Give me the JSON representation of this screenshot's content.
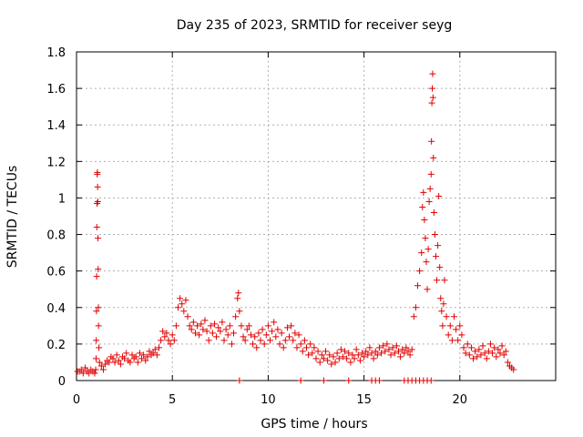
{
  "chart_data": {
    "type": "scatter",
    "title": "Day 235 of 2023, SRMTID for receiver seyg",
    "xlabel": "GPS time / hours",
    "ylabel": "SRMTID / TECUs",
    "xlim": [
      0,
      25
    ],
    "ylim": [
      0,
      1.8
    ],
    "grid": true,
    "marker": "+",
    "colors": {
      "marker": "#e00000",
      "grid": "#b0b0b0",
      "axis": "#000000"
    },
    "xticks": [
      "0",
      "5",
      "10",
      "15",
      "20"
    ],
    "xtick_values": [
      0,
      5,
      10,
      15,
      20
    ],
    "yticks": [
      "0",
      "0.2",
      "0.4",
      "0.6",
      "0.8",
      "1",
      "1.2",
      "1.4",
      "1.6",
      "1.8"
    ],
    "ytick_values": [
      0,
      0.2,
      0.4,
      0.6,
      0.8,
      1.0,
      1.2,
      1.4,
      1.6,
      1.8
    ],
    "series": [
      {
        "name": "SRMTID",
        "points": [
          [
            0.05,
            0.05
          ],
          [
            0.15,
            0.05
          ],
          [
            0.25,
            0.06
          ],
          [
            0.35,
            0.04
          ],
          [
            0.45,
            0.07
          ],
          [
            0.55,
            0.05
          ],
          [
            0.65,
            0.04
          ],
          [
            0.75,
            0.06
          ],
          [
            0.85,
            0.05
          ],
          [
            0.95,
            0.04
          ],
          [
            1.0,
            0.06
          ],
          [
            1.02,
            0.12
          ],
          [
            1.03,
            0.22
          ],
          [
            1.04,
            0.38
          ],
          [
            1.05,
            0.57
          ],
          [
            1.06,
            0.84
          ],
          [
            1.07,
            0.97
          ],
          [
            1.08,
            1.13
          ],
          [
            1.09,
            1.14
          ],
          [
            1.1,
            1.06
          ],
          [
            1.11,
            0.98
          ],
          [
            1.12,
            0.78
          ],
          [
            1.13,
            0.61
          ],
          [
            1.14,
            0.4
          ],
          [
            1.15,
            0.3
          ],
          [
            1.17,
            0.18
          ],
          [
            1.2,
            0.1
          ],
          [
            1.3,
            0.08
          ],
          [
            1.4,
            0.06
          ],
          [
            1.5,
            0.09
          ],
          [
            1.6,
            0.11
          ],
          [
            1.7,
            0.1
          ],
          [
            1.8,
            0.13
          ],
          [
            1.9,
            0.12
          ],
          [
            2.0,
            0.1
          ],
          [
            2.1,
            0.14
          ],
          [
            2.2,
            0.11
          ],
          [
            2.3,
            0.09
          ],
          [
            2.4,
            0.13
          ],
          [
            2.5,
            0.12
          ],
          [
            2.6,
            0.15
          ],
          [
            2.7,
            0.11
          ],
          [
            2.8,
            0.1
          ],
          [
            2.9,
            0.14
          ],
          [
            3.0,
            0.12
          ],
          [
            3.1,
            0.13
          ],
          [
            3.2,
            0.1
          ],
          [
            3.3,
            0.15
          ],
          [
            3.4,
            0.12
          ],
          [
            3.5,
            0.14
          ],
          [
            3.6,
            0.11
          ],
          [
            3.7,
            0.13
          ],
          [
            3.8,
            0.16
          ],
          [
            3.9,
            0.14
          ],
          [
            4.0,
            0.15
          ],
          [
            4.1,
            0.17
          ],
          [
            4.2,
            0.14
          ],
          [
            4.3,
            0.18
          ],
          [
            4.4,
            0.22
          ],
          [
            4.5,
            0.27
          ],
          [
            4.6,
            0.24
          ],
          [
            4.7,
            0.26
          ],
          [
            4.8,
            0.22
          ],
          [
            4.9,
            0.2
          ],
          [
            5.0,
            0.25
          ],
          [
            5.1,
            0.22
          ],
          [
            5.2,
            0.3
          ],
          [
            5.3,
            0.4
          ],
          [
            5.4,
            0.45
          ],
          [
            5.5,
            0.42
          ],
          [
            5.6,
            0.38
          ],
          [
            5.7,
            0.44
          ],
          [
            5.8,
            0.35
          ],
          [
            5.9,
            0.3
          ],
          [
            6.0,
            0.28
          ],
          [
            6.1,
            0.32
          ],
          [
            6.2,
            0.26
          ],
          [
            6.3,
            0.3
          ],
          [
            6.4,
            0.25
          ],
          [
            6.5,
            0.31
          ],
          [
            6.6,
            0.28
          ],
          [
            6.7,
            0.33
          ],
          [
            6.8,
            0.27
          ],
          [
            6.9,
            0.22
          ],
          [
            7.0,
            0.3
          ],
          [
            7.1,
            0.26
          ],
          [
            7.2,
            0.31
          ],
          [
            7.3,
            0.24
          ],
          [
            7.4,
            0.29
          ],
          [
            7.5,
            0.27
          ],
          [
            7.6,
            0.32
          ],
          [
            7.7,
            0.22
          ],
          [
            7.8,
            0.28
          ],
          [
            7.9,
            0.25
          ],
          [
            8.0,
            0.3
          ],
          [
            8.1,
            0.2
          ],
          [
            8.2,
            0.26
          ],
          [
            8.3,
            0.35
          ],
          [
            8.4,
            0.45
          ],
          [
            8.45,
            0.48
          ],
          [
            8.5,
            0.38
          ],
          [
            8.6,
            0.3
          ],
          [
            8.7,
            0.24
          ],
          [
            8.8,
            0.22
          ],
          [
            8.9,
            0.28
          ],
          [
            9.0,
            0.3
          ],
          [
            9.1,
            0.25
          ],
          [
            9.2,
            0.2
          ],
          [
            9.3,
            0.24
          ],
          [
            9.4,
            0.18
          ],
          [
            9.5,
            0.26
          ],
          [
            9.6,
            0.22
          ],
          [
            9.7,
            0.28
          ],
          [
            9.8,
            0.2
          ],
          [
            9.9,
            0.25
          ],
          [
            10.0,
            0.3
          ],
          [
            10.1,
            0.22
          ],
          [
            10.2,
            0.27
          ],
          [
            10.3,
            0.32
          ],
          [
            10.4,
            0.24
          ],
          [
            10.5,
            0.28
          ],
          [
            10.6,
            0.2
          ],
          [
            10.7,
            0.26
          ],
          [
            10.8,
            0.18
          ],
          [
            10.9,
            0.22
          ],
          [
            11.0,
            0.29
          ],
          [
            11.1,
            0.24
          ],
          [
            11.2,
            0.3
          ],
          [
            11.3,
            0.22
          ],
          [
            11.4,
            0.26
          ],
          [
            11.5,
            0.18
          ],
          [
            11.6,
            0.25
          ],
          [
            11.7,
            0.2
          ],
          [
            11.8,
            0.16
          ],
          [
            11.9,
            0.22
          ],
          [
            12.0,
            0.18
          ],
          [
            12.1,
            0.14
          ],
          [
            12.2,
            0.2
          ],
          [
            12.3,
            0.15
          ],
          [
            12.4,
            0.18
          ],
          [
            12.5,
            0.12
          ],
          [
            12.6,
            0.16
          ],
          [
            12.7,
            0.1
          ],
          [
            12.8,
            0.14
          ],
          [
            12.9,
            0.12
          ],
          [
            13.0,
            0.16
          ],
          [
            13.1,
            0.11
          ],
          [
            13.2,
            0.14
          ],
          [
            13.3,
            0.09
          ],
          [
            13.4,
            0.13
          ],
          [
            13.5,
            0.1
          ],
          [
            13.6,
            0.15
          ],
          [
            13.7,
            0.12
          ],
          [
            13.8,
            0.17
          ],
          [
            13.9,
            0.13
          ],
          [
            14.0,
            0.16
          ],
          [
            14.1,
            0.12
          ],
          [
            14.2,
            0.15
          ],
          [
            14.3,
            0.1
          ],
          [
            14.4,
            0.14
          ],
          [
            14.5,
            0.12
          ],
          [
            14.6,
            0.17
          ],
          [
            14.7,
            0.14
          ],
          [
            14.8,
            0.11
          ],
          [
            14.9,
            0.15
          ],
          [
            15.0,
            0.13
          ],
          [
            15.1,
            0.16
          ],
          [
            15.2,
            0.14
          ],
          [
            15.3,
            0.18
          ],
          [
            15.4,
            0.15
          ],
          [
            15.5,
            0.12
          ],
          [
            15.6,
            0.16
          ],
          [
            15.7,
            0.14
          ],
          [
            15.8,
            0.18
          ],
          [
            15.9,
            0.15
          ],
          [
            16.0,
            0.19
          ],
          [
            16.1,
            0.16
          ],
          [
            16.2,
            0.2
          ],
          [
            16.3,
            0.17
          ],
          [
            16.4,
            0.14
          ],
          [
            16.5,
            0.18
          ],
          [
            16.6,
            0.15
          ],
          [
            16.7,
            0.19
          ],
          [
            16.8,
            0.16
          ],
          [
            16.9,
            0.13
          ],
          [
            17.0,
            0.17
          ],
          [
            17.1,
            0.15
          ],
          [
            17.2,
            0.18
          ],
          [
            17.3,
            0.16
          ],
          [
            17.4,
            0.14
          ],
          [
            17.5,
            0.17
          ],
          [
            17.6,
            0.35
          ],
          [
            17.7,
            0.4
          ],
          [
            17.8,
            0.52
          ],
          [
            17.9,
            0.6
          ],
          [
            18.0,
            0.7
          ],
          [
            18.05,
            0.95
          ],
          [
            18.1,
            1.03
          ],
          [
            18.15,
            0.88
          ],
          [
            18.2,
            0.78
          ],
          [
            18.25,
            0.65
          ],
          [
            18.3,
            0.5
          ],
          [
            18.35,
            0.72
          ],
          [
            18.4,
            0.98
          ],
          [
            18.45,
            1.05
          ],
          [
            18.5,
            1.13
          ],
          [
            18.52,
            1.31
          ],
          [
            18.54,
            1.52
          ],
          [
            18.56,
            1.6
          ],
          [
            18.58,
            1.68
          ],
          [
            18.6,
            1.55
          ],
          [
            18.62,
            1.22
          ],
          [
            18.65,
            0.92
          ],
          [
            18.7,
            0.8
          ],
          [
            18.75,
            0.68
          ],
          [
            18.8,
            0.55
          ],
          [
            18.85,
            0.74
          ],
          [
            18.9,
            1.01
          ],
          [
            18.95,
            0.62
          ],
          [
            19.0,
            0.45
          ],
          [
            19.05,
            0.38
          ],
          [
            19.1,
            0.3
          ],
          [
            19.15,
            0.42
          ],
          [
            19.2,
            0.55
          ],
          [
            19.3,
            0.35
          ],
          [
            19.4,
            0.25
          ],
          [
            19.5,
            0.3
          ],
          [
            19.6,
            0.22
          ],
          [
            19.7,
            0.35
          ],
          [
            19.8,
            0.28
          ],
          [
            19.9,
            0.22
          ],
          [
            20.0,
            0.3
          ],
          [
            20.1,
            0.25
          ],
          [
            20.2,
            0.18
          ],
          [
            20.3,
            0.15
          ],
          [
            20.4,
            0.2
          ],
          [
            20.5,
            0.14
          ],
          [
            20.6,
            0.18
          ],
          [
            20.7,
            0.12
          ],
          [
            20.8,
            0.16
          ],
          [
            20.9,
            0.13
          ],
          [
            21.0,
            0.17
          ],
          [
            21.1,
            0.14
          ],
          [
            21.2,
            0.19
          ],
          [
            21.3,
            0.15
          ],
          [
            21.4,
            0.12
          ],
          [
            21.5,
            0.16
          ],
          [
            21.6,
            0.2
          ],
          [
            21.7,
            0.15
          ],
          [
            21.8,
            0.18
          ],
          [
            21.9,
            0.13
          ],
          [
            22.0,
            0.17
          ],
          [
            22.1,
            0.15
          ],
          [
            22.2,
            0.19
          ],
          [
            22.3,
            0.14
          ],
          [
            22.4,
            0.16
          ],
          [
            22.5,
            0.1
          ],
          [
            22.6,
            0.08
          ],
          [
            22.7,
            0.07
          ],
          [
            22.8,
            0.06
          ],
          [
            8.5,
            0.0
          ],
          [
            11.7,
            0.0
          ],
          [
            12.9,
            0.0
          ],
          [
            14.2,
            0.0
          ],
          [
            15.4,
            0.0
          ],
          [
            15.6,
            0.0
          ],
          [
            15.8,
            0.0
          ],
          [
            17.1,
            0.0
          ],
          [
            17.3,
            0.0
          ],
          [
            17.5,
            0.0
          ],
          [
            17.7,
            0.0
          ],
          [
            17.9,
            0.0
          ],
          [
            18.1,
            0.0
          ],
          [
            18.3,
            0.0
          ],
          [
            18.5,
            0.0
          ]
        ]
      }
    ]
  }
}
